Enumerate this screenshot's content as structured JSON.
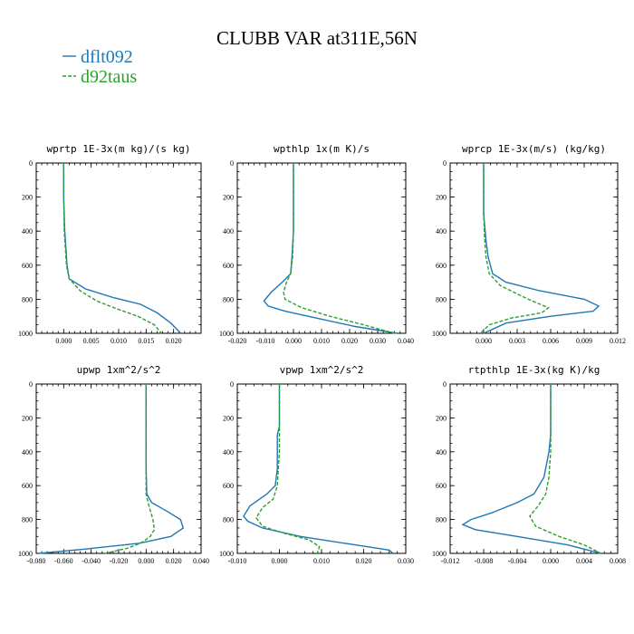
{
  "figure": {
    "title": "CLUBB VAR at311E,56N",
    "legend": [
      {
        "label": "dflt092",
        "color": "#1f77b4",
        "dash": "solid"
      },
      {
        "label": "d92taus",
        "color": "#2ca02c",
        "dash": "dashed"
      }
    ]
  },
  "chart_data": [
    {
      "type": "line",
      "title": "wprtp  1E-3x(m kg)/(s kg)",
      "xlim": [
        -0.005,
        0.025
      ],
      "ylim": [
        1000,
        0
      ],
      "xticks": [
        0.0,
        0.005,
        0.01,
        0.015,
        0.02
      ],
      "xtick_labels": [
        "0.000",
        "0.005",
        "0.010",
        "0.015",
        "0.020"
      ],
      "yticks": [
        0,
        200,
        400,
        600,
        800,
        1000
      ],
      "ytick_labels": [
        "0",
        "200",
        "400",
        "600",
        "800",
        "1000"
      ],
      "series": [
        {
          "name": "dflt092",
          "color": "#1f77b4",
          "dash": "solid",
          "x": [
            0.0,
            0.0,
            0.0002,
            0.0004,
            0.0006,
            0.001,
            0.004,
            0.009,
            0.014,
            0.017,
            0.0195,
            0.0213
          ],
          "y": [
            0,
            200,
            400,
            500,
            600,
            680,
            740,
            790,
            830,
            880,
            940,
            1000
          ]
        },
        {
          "name": "d92taus",
          "color": "#2ca02c",
          "dash": "dashed",
          "x": [
            0.0,
            0.0,
            0.0001,
            0.0003,
            0.0005,
            0.001,
            0.003,
            0.006,
            0.01,
            0.0135,
            0.0165,
            0.0178
          ],
          "y": [
            0,
            200,
            400,
            500,
            600,
            680,
            750,
            810,
            860,
            900,
            950,
            1000
          ]
        }
      ]
    },
    {
      "type": "line",
      "title": "wpthlp  1x(m K)/s",
      "xlim": [
        -0.02,
        0.04
      ],
      "ylim": [
        1000,
        0
      ],
      "xticks": [
        -0.02,
        -0.01,
        0.0,
        0.01,
        0.02,
        0.03,
        0.04
      ],
      "xtick_labels": [
        "-0.020",
        "-0.010",
        "0.000",
        "0.010",
        "0.020",
        "0.030",
        "0.040"
      ],
      "yticks": [
        0,
        200,
        400,
        600,
        800,
        1000
      ],
      "ytick_labels": [
        "0",
        "200",
        "400",
        "600",
        "800",
        "1000"
      ],
      "series": [
        {
          "name": "dflt092",
          "color": "#1f77b4",
          "dash": "solid",
          "x": [
            0.0,
            0.0,
            0.0,
            -0.0005,
            -0.001,
            -0.004,
            -0.008,
            -0.0105,
            -0.009,
            -0.003,
            0.008,
            0.022,
            0.037
          ],
          "y": [
            0,
            200,
            400,
            550,
            650,
            700,
            760,
            810,
            840,
            870,
            910,
            960,
            1000
          ]
        },
        {
          "name": "d92taus",
          "color": "#2ca02c",
          "dash": "dashed",
          "x": [
            0.0,
            0.0,
            0.0,
            -0.0003,
            -0.001,
            -0.0025,
            -0.0035,
            -0.003,
            0.003,
            0.013,
            0.025,
            0.036
          ],
          "y": [
            0,
            200,
            400,
            550,
            650,
            700,
            760,
            800,
            850,
            900,
            950,
            1000
          ]
        }
      ]
    },
    {
      "type": "line",
      "title": "wprcp  1E-3x(m/s) (kg/kg)",
      "xlim": [
        -0.003,
        0.012
      ],
      "ylim": [
        1000,
        0
      ],
      "xticks": [
        0.0,
        0.003,
        0.006,
        0.009,
        0.012
      ],
      "xtick_labels": [
        "0.000",
        "0.003",
        "0.006",
        "0.009",
        "0.012"
      ],
      "yticks": [
        0,
        200,
        400,
        600,
        800,
        1000
      ],
      "ytick_labels": [
        "0",
        "200",
        "400",
        "600",
        "800",
        "1000"
      ],
      "series": [
        {
          "name": "dflt092",
          "color": "#1f77b4",
          "dash": "solid",
          "x": [
            0.0,
            0.0,
            0.0002,
            0.0004,
            0.0008,
            0.002,
            0.005,
            0.009,
            0.0103,
            0.0098,
            0.006,
            0.002,
            0.0
          ],
          "y": [
            0,
            300,
            450,
            550,
            650,
            700,
            750,
            800,
            840,
            870,
            900,
            940,
            1000
          ]
        },
        {
          "name": "d92taus",
          "color": "#2ca02c",
          "dash": "dashed",
          "x": [
            0.0,
            0.0,
            0.0001,
            0.0002,
            0.0005,
            0.0015,
            0.004,
            0.0058,
            0.0052,
            0.0025,
            0.0005,
            -0.0003
          ],
          "y": [
            0,
            300,
            450,
            550,
            650,
            720,
            800,
            850,
            880,
            910,
            950,
            1000
          ]
        }
      ]
    },
    {
      "type": "line",
      "title": "upwp  1xm^2/s^2",
      "xlim": [
        -0.08,
        0.04
      ],
      "ylim": [
        1000,
        0
      ],
      "xticks": [
        -0.08,
        -0.06,
        -0.04,
        -0.02,
        0.0,
        0.02,
        0.04
      ],
      "xtick_labels": [
        "-0.080",
        "-0.060",
        "-0.040",
        "-0.020",
        "0.000",
        "0.020",
        "0.040"
      ],
      "yticks": [
        0,
        200,
        400,
        600,
        800,
        1000
      ],
      "ytick_labels": [
        "0",
        "200",
        "400",
        "600",
        "800",
        "1000"
      ],
      "series": [
        {
          "name": "dflt092",
          "color": "#1f77b4",
          "dash": "solid",
          "x": [
            0.0,
            0.0,
            0.0,
            0.0005,
            0.004,
            0.015,
            0.025,
            0.027,
            0.018,
            -0.005,
            -0.045,
            -0.078
          ],
          "y": [
            0,
            200,
            500,
            650,
            700,
            750,
            800,
            850,
            900,
            940,
            975,
            1000
          ]
        },
        {
          "name": "d92taus",
          "color": "#2ca02c",
          "dash": "dashed",
          "x": [
            0.0,
            0.0,
            0.0,
            0.0,
            0.002,
            0.005,
            0.006,
            0.003,
            -0.004,
            -0.014,
            -0.03
          ],
          "y": [
            0,
            200,
            500,
            650,
            720,
            800,
            860,
            900,
            940,
            970,
            1000
          ]
        }
      ]
    },
    {
      "type": "line",
      "title": "vpwp  1xm^2/s^2",
      "xlim": [
        -0.01,
        0.03
      ],
      "ylim": [
        1000,
        0
      ],
      "xticks": [
        -0.01,
        0.0,
        0.01,
        0.02,
        0.03
      ],
      "xtick_labels": [
        "-0.010",
        "0.000",
        "0.010",
        "0.020",
        "0.030"
      ],
      "yticks": [
        0,
        200,
        400,
        600,
        800,
        1000
      ],
      "ytick_labels": [
        "0",
        "200",
        "400",
        "600",
        "800",
        "1000"
      ],
      "series": [
        {
          "name": "dflt092",
          "color": "#1f77b4",
          "dash": "solid",
          "x": [
            0.0,
            0.0,
            -0.0005,
            -0.0005,
            -0.001,
            -0.003,
            -0.007,
            -0.0085,
            -0.0075,
            -0.004,
            0.005,
            0.018,
            0.026,
            0.027
          ],
          "y": [
            0,
            250,
            300,
            500,
            600,
            650,
            720,
            780,
            810,
            850,
            900,
            950,
            980,
            1000
          ]
        },
        {
          "name": "d92taus",
          "color": "#2ca02c",
          "dash": "dashed",
          "x": [
            0.0,
            0.0,
            0.0,
            -0.0005,
            -0.0015,
            -0.004,
            -0.0055,
            -0.004,
            0.001,
            0.007,
            0.0095,
            0.009
          ],
          "y": [
            0,
            250,
            400,
            600,
            680,
            730,
            790,
            840,
            880,
            920,
            960,
            1000
          ]
        }
      ]
    },
    {
      "type": "line",
      "title": "rtpthlp  1E-3x(kg K)/kg",
      "xlim": [
        -0.012,
        0.008
      ],
      "ylim": [
        1000,
        0
      ],
      "xticks": [
        -0.012,
        -0.008,
        -0.004,
        0.0,
        0.004,
        0.008
      ],
      "xtick_labels": [
        "-0.012",
        "-0.008",
        "-0.004",
        "0.000",
        "0.004",
        "0.008"
      ],
      "yticks": [
        0,
        200,
        400,
        600,
        800,
        1000
      ],
      "ytick_labels": [
        "0",
        "200",
        "400",
        "600",
        "800",
        "1000"
      ],
      "series": [
        {
          "name": "dflt092",
          "color": "#1f77b4",
          "dash": "solid",
          "x": [
            0.0,
            0.0,
            -0.0002,
            -0.0008,
            -0.002,
            -0.004,
            -0.007,
            -0.0095,
            -0.0105,
            -0.009,
            -0.004,
            0.002,
            0.006
          ],
          "y": [
            0,
            300,
            400,
            550,
            650,
            700,
            760,
            800,
            830,
            860,
            900,
            950,
            1000
          ]
        },
        {
          "name": "d92taus",
          "color": "#2ca02c",
          "dash": "dashed",
          "x": [
            0.0,
            0.0,
            -0.0002,
            -0.0006,
            -0.0015,
            -0.0025,
            -0.0018,
            0.001,
            0.004,
            0.006
          ],
          "y": [
            0,
            400,
            550,
            650,
            720,
            780,
            840,
            900,
            950,
            1000
          ]
        }
      ]
    }
  ]
}
